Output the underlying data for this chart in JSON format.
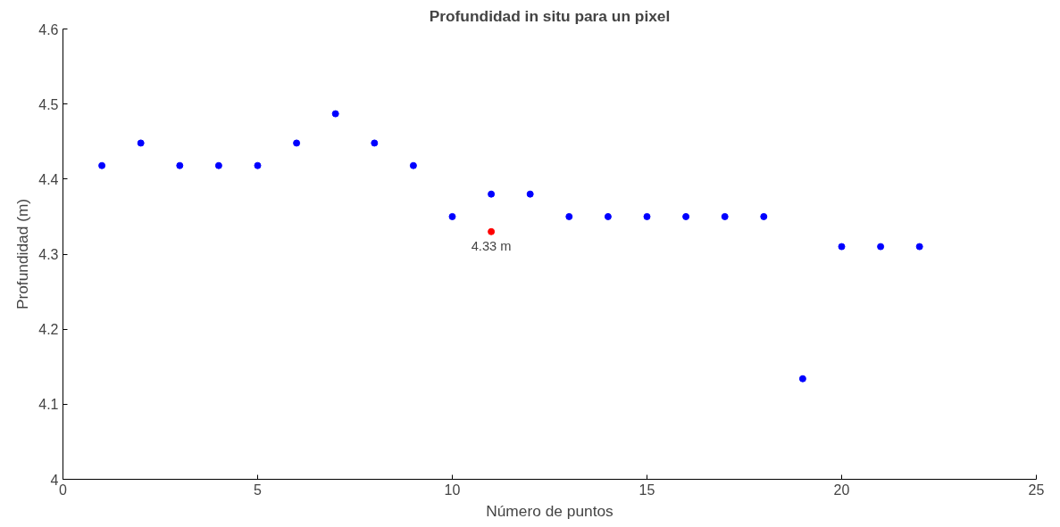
{
  "chart_data": {
    "type": "scatter",
    "title": "Profundidad in situ para un pixel",
    "xlabel": "Número de puntos",
    "ylabel": "Profundidad (m)",
    "xlim": [
      0,
      25
    ],
    "xticks": [
      0,
      5,
      10,
      15,
      20,
      25
    ],
    "ylim": [
      4,
      4.6
    ],
    "yticks": [
      4,
      4.1,
      4.2,
      4.3,
      4.4,
      4.5,
      4.6
    ],
    "marker": "circle",
    "series": [
      {
        "color": "#0000ff",
        "x": [
          1,
          2,
          3,
          4,
          5,
          6,
          7,
          8,
          9,
          10,
          11,
          12,
          13,
          14,
          15,
          16,
          17,
          18,
          19,
          20,
          21,
          22
        ],
        "values": [
          4.418,
          4.448,
          4.418,
          4.418,
          4.418,
          4.448,
          4.487,
          4.448,
          4.418,
          4.35,
          4.38,
          4.38,
          4.35,
          4.35,
          4.35,
          4.35,
          4.35,
          4.35,
          4.134,
          4.31,
          4.31,
          4.31
        ]
      },
      {
        "color": "#ff0000",
        "x": [
          11
        ],
        "values": [
          4.33
        ]
      }
    ],
    "annotations": [
      {
        "text": "4.33 m",
        "x": 11,
        "y": 4.33
      }
    ]
  }
}
